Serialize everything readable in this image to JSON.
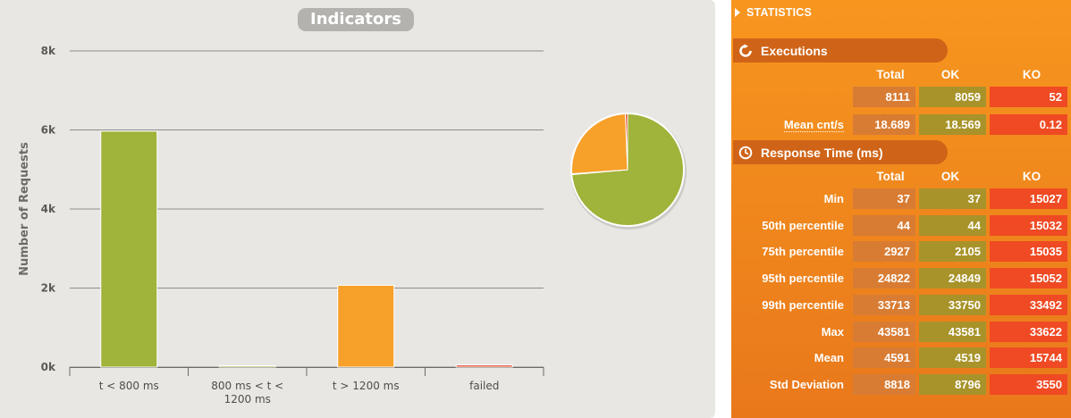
{
  "chart": {
    "title": "Indicators",
    "y_axis_label": "Number of Requests",
    "y_ticks": [
      "0k",
      "2k",
      "4k",
      "6k",
      "8k"
    ],
    "x_categories": [
      [
        "t < 800 ms"
      ],
      [
        "800 ms < t <",
        "1200 ms"
      ],
      [
        "t > 1200 ms"
      ],
      [
        "failed"
      ]
    ]
  },
  "chart_data": [
    {
      "type": "bar",
      "title": "Indicators",
      "ylabel": "Number of Requests",
      "xlabel": "",
      "categories": [
        "t < 800 ms",
        "800 ms < t < 1200 ms",
        "t > 1200 ms",
        "failed"
      ],
      "values": [
        5970,
        20,
        2070,
        52
      ],
      "colors": [
        "#a0b33a",
        "#a0b33a",
        "#f7a02a",
        "#e4472b"
      ],
      "ylim": [
        0,
        8000
      ],
      "grid": true
    },
    {
      "type": "pie",
      "slices": [
        {
          "name": "t < 800 ms",
          "value": 5970,
          "color": "#a0b33a"
        },
        {
          "name": "800 ms < t < 1200 ms",
          "value": 20,
          "color": "#c2c82f"
        },
        {
          "name": "t > 1200 ms",
          "value": 2070,
          "color": "#f7a02a"
        },
        {
          "name": "failed",
          "value": 52,
          "color": "#e4472b"
        }
      ]
    }
  ],
  "stats": {
    "header": "STATISTICS",
    "executions": {
      "title": "Executions",
      "columns": [
        "Total",
        "OK",
        "KO"
      ],
      "rows": [
        {
          "label": "",
          "total": "8111",
          "ok": "8059",
          "ko": "52"
        },
        {
          "label": "Mean cnt/s",
          "total": "18.689",
          "ok": "18.569",
          "ko": "0.12"
        }
      ]
    },
    "response_time": {
      "title": "Response Time (ms)",
      "columns": [
        "Total",
        "OK",
        "KO"
      ],
      "rows": [
        {
          "label": "Min",
          "total": "37",
          "ok": "37",
          "ko": "15027"
        },
        {
          "label": "50th percentile",
          "total": "44",
          "ok": "44",
          "ko": "15032"
        },
        {
          "label": "75th percentile",
          "total": "2927",
          "ok": "2105",
          "ko": "15035"
        },
        {
          "label": "95th percentile",
          "total": "24822",
          "ok": "24849",
          "ko": "15052"
        },
        {
          "label": "99th percentile",
          "total": "33713",
          "ok": "33750",
          "ko": "33492"
        },
        {
          "label": "Max",
          "total": "43581",
          "ok": "43581",
          "ko": "33622"
        },
        {
          "label": "Mean",
          "total": "4591",
          "ok": "4519",
          "ko": "15744"
        },
        {
          "label": "Std Deviation",
          "total": "8818",
          "ok": "8796",
          "ko": "3550"
        }
      ]
    }
  }
}
